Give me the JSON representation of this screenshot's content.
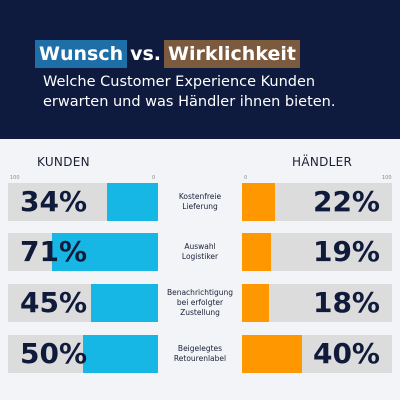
{
  "header": {
    "title_part1": "Wunsch",
    "title_vs": "vs.",
    "title_part2": "Wirklichkeit",
    "subtitle_line1": "Welche Customer Experience Kunden",
    "subtitle_line2": "erwarten und was Händler ihnen bieten."
  },
  "columns": {
    "left": "KUNDEN",
    "right": "HÄNDLER"
  },
  "axis": {
    "left_start": "100",
    "left_end": "0",
    "right_start": "0",
    "right_end": "100"
  },
  "colors": {
    "header_bg": "#0f1b3e",
    "kunden": "#16b6e5",
    "haendler": "#ff9800",
    "track": "#dcdcdc"
  },
  "chart_data": {
    "type": "bar",
    "categories": [
      "Kostenfreie Lieferung",
      "Auswahl Logistiker",
      "Benachrichtigung bei erfolgter Zustellung",
      "Beigelegtes Retourenlabel"
    ],
    "category_lines": [
      [
        "Kostenfreie",
        "Lieferung"
      ],
      [
        "Auswahl",
        "Logistiker"
      ],
      [
        "Benachrichtigung",
        "bei erfolgter",
        "Zustellung"
      ],
      [
        "Beigelegtes",
        "Retourenlabel"
      ]
    ],
    "series": [
      {
        "name": "KUNDEN",
        "values": [
          34,
          71,
          45,
          50
        ],
        "labels": [
          "34%",
          "71%",
          "45%",
          "50%"
        ]
      },
      {
        "name": "HÄNDLER",
        "values": [
          22,
          19,
          18,
          40
        ],
        "labels": [
          "22%",
          "19%",
          "18%",
          "40%"
        ]
      }
    ],
    "ylim": [
      0,
      100
    ]
  }
}
